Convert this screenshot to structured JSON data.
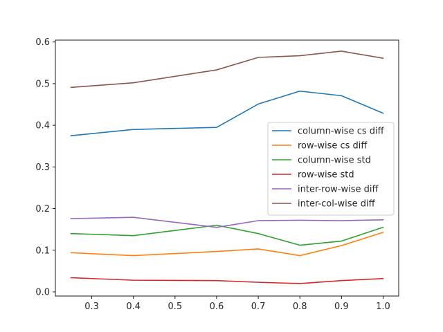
{
  "chart_data": {
    "type": "line",
    "title": "",
    "xlabel": "",
    "ylabel": "",
    "x": [
      0.25,
      0.4,
      0.6,
      0.7,
      0.8,
      0.9,
      1.0
    ],
    "xlim": [
      0.2125,
      1.0375
    ],
    "ylim": [
      -0.01,
      0.6045
    ],
    "xticks": [
      0.3,
      0.4,
      0.5,
      0.6,
      0.7,
      0.8,
      0.9,
      1.0
    ],
    "xtick_labels": [
      "0.3",
      "0.4",
      "0.5",
      "0.6",
      "0.7",
      "0.8",
      "0.9",
      "1.0"
    ],
    "yticks": [
      0.0,
      0.1,
      0.2,
      0.3,
      0.4,
      0.5,
      0.6
    ],
    "ytick_labels": [
      "0.0",
      "0.1",
      "0.2",
      "0.3",
      "0.4",
      "0.5",
      "0.6"
    ],
    "grid": false,
    "legend_position": "center-right",
    "series": [
      {
        "name": "column-wise cs diff",
        "color": "#1f77b4",
        "values": [
          0.375,
          0.39,
          0.395,
          0.451,
          0.482,
          0.471,
          0.429
        ]
      },
      {
        "name": "row-wise cs diff",
        "color": "#ff7f0e",
        "values": [
          0.094,
          0.087,
          0.097,
          0.103,
          0.087,
          0.111,
          0.143
        ]
      },
      {
        "name": "column-wise std",
        "color": "#2ca02c",
        "values": [
          0.14,
          0.135,
          0.16,
          0.14,
          0.112,
          0.122,
          0.155
        ]
      },
      {
        "name": "row-wise std",
        "color": "#d62728",
        "values": [
          0.034,
          0.028,
          0.027,
          0.023,
          0.02,
          0.027,
          0.032
        ]
      },
      {
        "name": "inter-row-wise diff",
        "color": "#9467bd",
        "values": [
          0.176,
          0.179,
          0.155,
          0.171,
          0.172,
          0.171,
          0.173
        ]
      },
      {
        "name": "inter-col-wise diff",
        "color": "#8c564b",
        "values": [
          0.491,
          0.502,
          0.533,
          0.563,
          0.567,
          0.578,
          0.561
        ]
      }
    ]
  }
}
